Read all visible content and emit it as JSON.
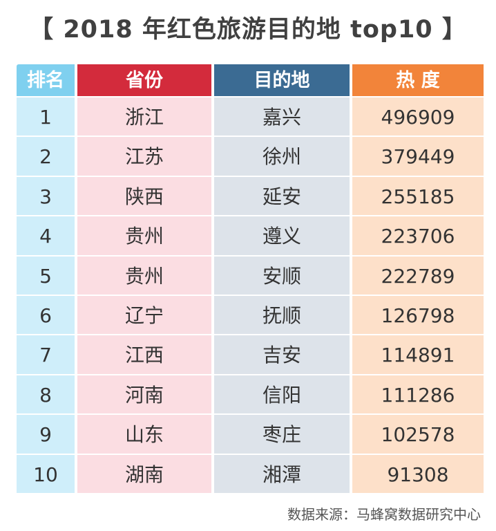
{
  "title": {
    "left_bracket": "【",
    "text": "2018 年红色旅游目的地 top10",
    "right_bracket": "】"
  },
  "chart_data": {
    "type": "table",
    "title": "2018 年红色旅游目的地 top10",
    "columns": [
      "排名",
      "省份",
      "目的地",
      "热 度"
    ],
    "rows": [
      {
        "rank": "1",
        "province": "浙江",
        "destination": "嘉兴",
        "heat": 496909
      },
      {
        "rank": "2",
        "province": "江苏",
        "destination": "徐州",
        "heat": 379449
      },
      {
        "rank": "3",
        "province": "陕西",
        "destination": "延安",
        "heat": 255185
      },
      {
        "rank": "4",
        "province": "贵州",
        "destination": "遵义",
        "heat": 223706
      },
      {
        "rank": "5",
        "province": "贵州",
        "destination": "安顺",
        "heat": 222789
      },
      {
        "rank": "6",
        "province": "辽宁",
        "destination": "抚顺",
        "heat": 126798
      },
      {
        "rank": "7",
        "province": "江西",
        "destination": "吉安",
        "heat": 114891
      },
      {
        "rank": "8",
        "province": "河南",
        "destination": "信阳",
        "heat": 111286
      },
      {
        "rank": "9",
        "province": "山东",
        "destination": "枣庄",
        "heat": 102578
      },
      {
        "rank": "10",
        "province": "湖南",
        "destination": "湘潭",
        "heat": 91308
      }
    ],
    "header_colors": {
      "rank": "#7fd0ef",
      "province": "#d32b3c",
      "destination": "#3b6b93",
      "heat": "#f2843a"
    },
    "cell_colors": {
      "rank": "#cfeefa",
      "province": "#fbdde2",
      "destination": "#dde3ea",
      "heat": "#fde0c9"
    }
  },
  "source": "数据来源：马蜂窝数据研究中心"
}
